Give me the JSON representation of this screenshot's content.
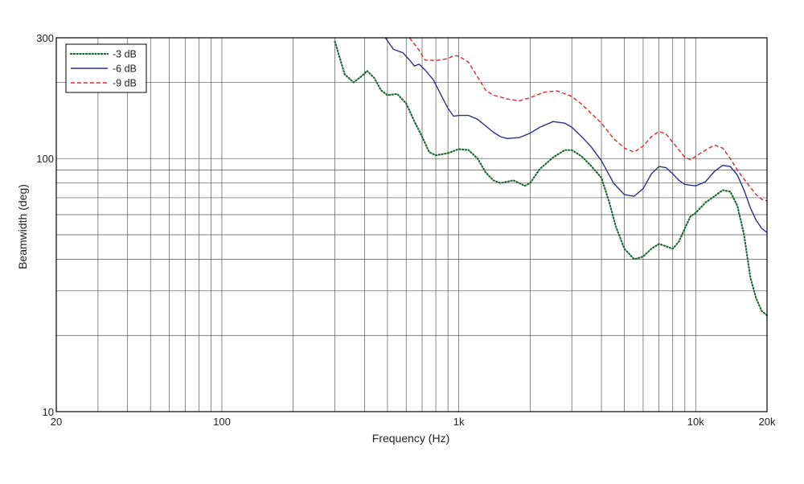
{
  "chart_data": {
    "type": "line",
    "xscale": "log",
    "yscale": "log",
    "xlabel": "Frequency (Hz)",
    "ylabel": "Beamwidth (deg)",
    "xlim": [
      20,
      20000
    ],
    "ylim": [
      10,
      300
    ],
    "xticks": [
      {
        "value": 20,
        "label": "20"
      },
      {
        "value": 100,
        "label": "100"
      },
      {
        "value": 1000,
        "label": "1k"
      },
      {
        "value": 10000,
        "label": "10k"
      },
      {
        "value": 20000,
        "label": "20k"
      }
    ],
    "yticks": [
      {
        "value": 10,
        "label": "10"
      },
      {
        "value": 100,
        "label": "100"
      },
      {
        "value": 300,
        "label": "300"
      }
    ],
    "grid": true,
    "legend_position": "top-left",
    "series": [
      {
        "name": "-3 dB",
        "color": "#1e6b3a",
        "style": "dotted",
        "points": [
          [
            300,
            290
          ],
          [
            330,
            215
          ],
          [
            360,
            200
          ],
          [
            390,
            212
          ],
          [
            410,
            222
          ],
          [
            440,
            208
          ],
          [
            470,
            186
          ],
          [
            500,
            178
          ],
          [
            550,
            180
          ],
          [
            600,
            165
          ],
          [
            650,
            140
          ],
          [
            700,
            122
          ],
          [
            750,
            106
          ],
          [
            800,
            103
          ],
          [
            900,
            105
          ],
          [
            1000,
            109
          ],
          [
            1100,
            108
          ],
          [
            1200,
            100
          ],
          [
            1300,
            88
          ],
          [
            1400,
            82
          ],
          [
            1500,
            80
          ],
          [
            1600,
            81
          ],
          [
            1700,
            82
          ],
          [
            1800,
            80
          ],
          [
            1900,
            78
          ],
          [
            2000,
            80
          ],
          [
            2200,
            91
          ],
          [
            2500,
            101
          ],
          [
            2800,
            108
          ],
          [
            3000,
            108
          ],
          [
            3300,
            102
          ],
          [
            3600,
            94
          ],
          [
            4000,
            84
          ],
          [
            4300,
            68
          ],
          [
            4600,
            54
          ],
          [
            5000,
            44
          ],
          [
            5500,
            40
          ],
          [
            6000,
            41
          ],
          [
            6500,
            44
          ],
          [
            7000,
            46
          ],
          [
            7500,
            45
          ],
          [
            8000,
            44
          ],
          [
            8500,
            47
          ],
          [
            9000,
            53
          ],
          [
            9500,
            59
          ],
          [
            10000,
            61
          ],
          [
            11000,
            67
          ],
          [
            12000,
            71
          ],
          [
            13000,
            75
          ],
          [
            14000,
            74
          ],
          [
            15000,
            65
          ],
          [
            16000,
            50
          ],
          [
            17000,
            34
          ],
          [
            18000,
            28
          ],
          [
            19000,
            25
          ],
          [
            20000,
            24
          ]
        ]
      },
      {
        "name": "-6 dB",
        "color": "#2e2f8a",
        "style": "solid",
        "points": [
          [
            490,
            300
          ],
          [
            530,
            270
          ],
          [
            580,
            262
          ],
          [
            620,
            245
          ],
          [
            650,
            232
          ],
          [
            680,
            236
          ],
          [
            720,
            224
          ],
          [
            780,
            205
          ],
          [
            850,
            175
          ],
          [
            900,
            158
          ],
          [
            950,
            147
          ],
          [
            1000,
            148
          ],
          [
            1100,
            148
          ],
          [
            1200,
            143
          ],
          [
            1400,
            127
          ],
          [
            1500,
            122
          ],
          [
            1600,
            120
          ],
          [
            1800,
            121
          ],
          [
            2000,
            126
          ],
          [
            2200,
            133
          ],
          [
            2500,
            140
          ],
          [
            2800,
            138
          ],
          [
            3000,
            133
          ],
          [
            3300,
            122
          ],
          [
            3600,
            112
          ],
          [
            4000,
            98
          ],
          [
            4500,
            80
          ],
          [
            5000,
            72
          ],
          [
            5500,
            71
          ],
          [
            6000,
            76
          ],
          [
            6500,
            87
          ],
          [
            7000,
            93
          ],
          [
            7500,
            92
          ],
          [
            8000,
            87
          ],
          [
            8500,
            82
          ],
          [
            9000,
            79
          ],
          [
            10000,
            78
          ],
          [
            11000,
            81
          ],
          [
            12000,
            89
          ],
          [
            13000,
            94
          ],
          [
            14000,
            93
          ],
          [
            15000,
            86
          ],
          [
            16000,
            75
          ],
          [
            17000,
            64
          ],
          [
            18000,
            57
          ],
          [
            19000,
            53
          ],
          [
            20000,
            51
          ]
        ]
      },
      {
        "name": "-9 dB",
        "color": "#d8282a",
        "style": "dashed",
        "points": [
          [
            620,
            300
          ],
          [
            680,
            268
          ],
          [
            720,
            245
          ],
          [
            800,
            244
          ],
          [
            900,
            248
          ],
          [
            950,
            255
          ],
          [
            1000,
            254
          ],
          [
            1100,
            240
          ],
          [
            1200,
            210
          ],
          [
            1300,
            186
          ],
          [
            1400,
            178
          ],
          [
            1600,
            172
          ],
          [
            1800,
            169
          ],
          [
            2000,
            174
          ],
          [
            2300,
            183
          ],
          [
            2600,
            185
          ],
          [
            3000,
            176
          ],
          [
            3300,
            164
          ],
          [
            3700,
            148
          ],
          [
            4000,
            138
          ],
          [
            4500,
            120
          ],
          [
            5000,
            110
          ],
          [
            5500,
            106
          ],
          [
            6000,
            112
          ],
          [
            6500,
            122
          ],
          [
            7000,
            128
          ],
          [
            7500,
            125
          ],
          [
            8000,
            116
          ],
          [
            8500,
            108
          ],
          [
            9000,
            101
          ],
          [
            9500,
            99
          ],
          [
            10000,
            102
          ],
          [
            11000,
            108
          ],
          [
            12000,
            113
          ],
          [
            13000,
            110
          ],
          [
            14000,
            100
          ],
          [
            15000,
            90
          ],
          [
            16000,
            83
          ],
          [
            17000,
            77
          ],
          [
            18000,
            72
          ],
          [
            19000,
            69
          ],
          [
            20000,
            68
          ]
        ]
      }
    ]
  }
}
